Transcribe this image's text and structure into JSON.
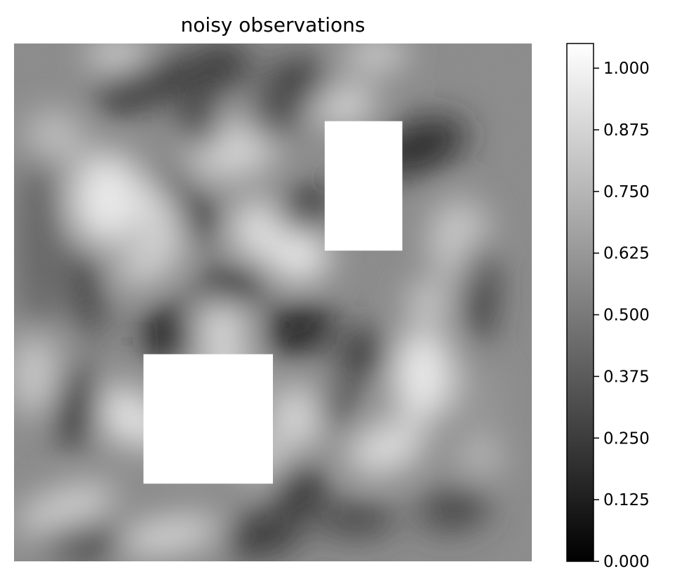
{
  "chart_data": {
    "type": "heatmap",
    "title": "noisy observations",
    "colormap": "gray",
    "color_range": [
      0.0,
      1.05
    ],
    "colorbar": {
      "ticks": [
        0.0,
        0.125,
        0.25,
        0.375,
        0.5,
        0.625,
        0.75,
        0.875,
        1.0
      ],
      "tick_labels": [
        "0.000",
        "0.125",
        "0.250",
        "0.375",
        "0.500",
        "0.625",
        "0.750",
        "0.875",
        "1.000"
      ],
      "levels": 42
    },
    "axes_visible": false,
    "masked_regions": [
      {
        "name": "upper-right-mask",
        "x": [
          0.6,
          0.75
        ],
        "y": [
          0.6,
          0.85
        ]
      },
      {
        "name": "lower-left-mask",
        "x": [
          0.25,
          0.5
        ],
        "y": [
          0.15,
          0.4
        ]
      }
    ]
  }
}
